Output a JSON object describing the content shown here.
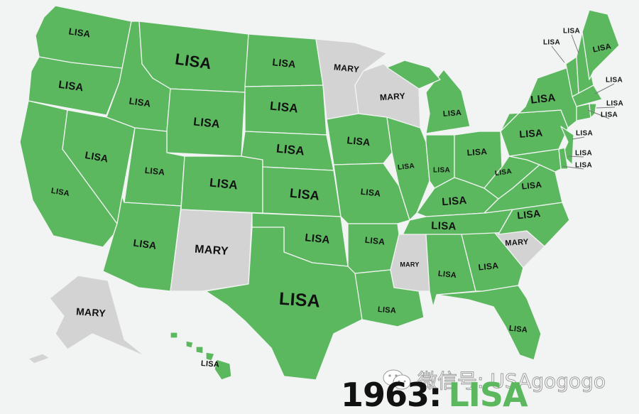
{
  "colors": {
    "LISA": "#5cb85f",
    "MARY": "#d3d3d3",
    "background": "#f2f4f4",
    "border": "#f2f4f4"
  },
  "states": {
    "WA": "LISA",
    "OR": "LISA",
    "CA": "LISA",
    "NV": "LISA",
    "ID": "LISA",
    "MT": "LISA",
    "WY": "LISA",
    "UT": "LISA",
    "AZ": "LISA",
    "CO": "LISA",
    "NM": "MARY",
    "ND": "LISA",
    "SD": "LISA",
    "NE": "LISA",
    "KS": "LISA",
    "OK": "LISA",
    "TX": "LISA",
    "MN": "MARY",
    "IA": "LISA",
    "MO": "LISA",
    "AR": "LISA",
    "LA": "LISA",
    "WI": "MARY",
    "IL": "LISA",
    "MI": "LISA",
    "IN": "LISA",
    "OH": "LISA",
    "KY": "LISA",
    "TN": "LISA",
    "MS": "MARY",
    "AL": "LISA",
    "GA": "LISA",
    "FL": "LISA",
    "SC": "MARY",
    "NC": "LISA",
    "VA": "LISA",
    "WV": "LISA",
    "PA": "LISA",
    "NY": "LISA",
    "NJ": "LISA",
    "DE": "LISA",
    "MD": "LISA",
    "VT": "LISA",
    "NH": "LISA",
    "ME": "LISA",
    "MA": "LISA",
    "CT": "LISA",
    "RI": "LISA",
    "AK": "MARY",
    "HI": "LISA"
  },
  "title": {
    "year": "1963:",
    "name": "LISA"
  },
  "watermark": {
    "text": "微信号: USAgogogo",
    "icon": "wechat-icon"
  }
}
